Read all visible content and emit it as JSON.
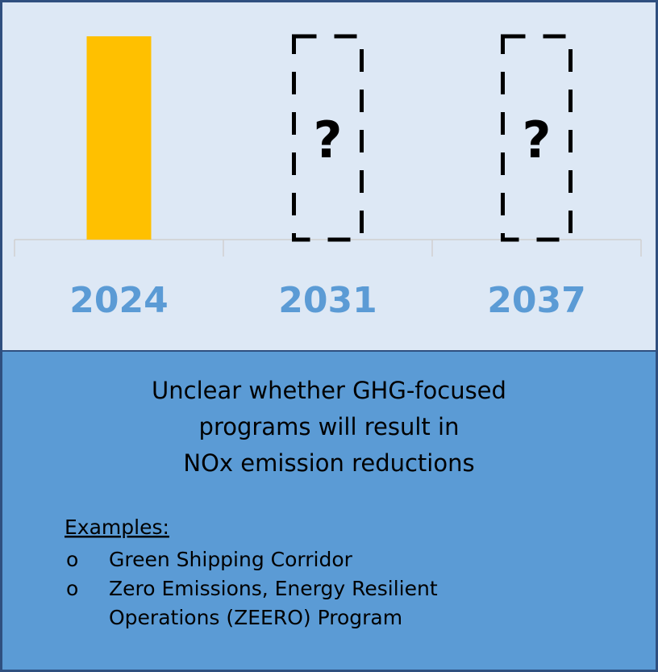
{
  "chart_data": {
    "type": "bar",
    "categories": [
      "2024",
      "2031",
      "2037"
    ],
    "values": [
      1,
      null,
      null
    ],
    "value_labels": [
      null,
      "?",
      "?"
    ],
    "color": "#ffc000",
    "ylim": [
      0,
      1
    ]
  },
  "note": {
    "lines": [
      "Unclear whether GHG-focused",
      "programs will result in",
      "NOx emission reductions"
    ]
  },
  "examples": {
    "heading": "Examples:",
    "items": [
      [
        "Green Shipping Corridor"
      ],
      [
        "Zero Emissions, Energy Resilient",
        "Operations (ZEERO) Program"
      ]
    ],
    "bullet": "o"
  }
}
